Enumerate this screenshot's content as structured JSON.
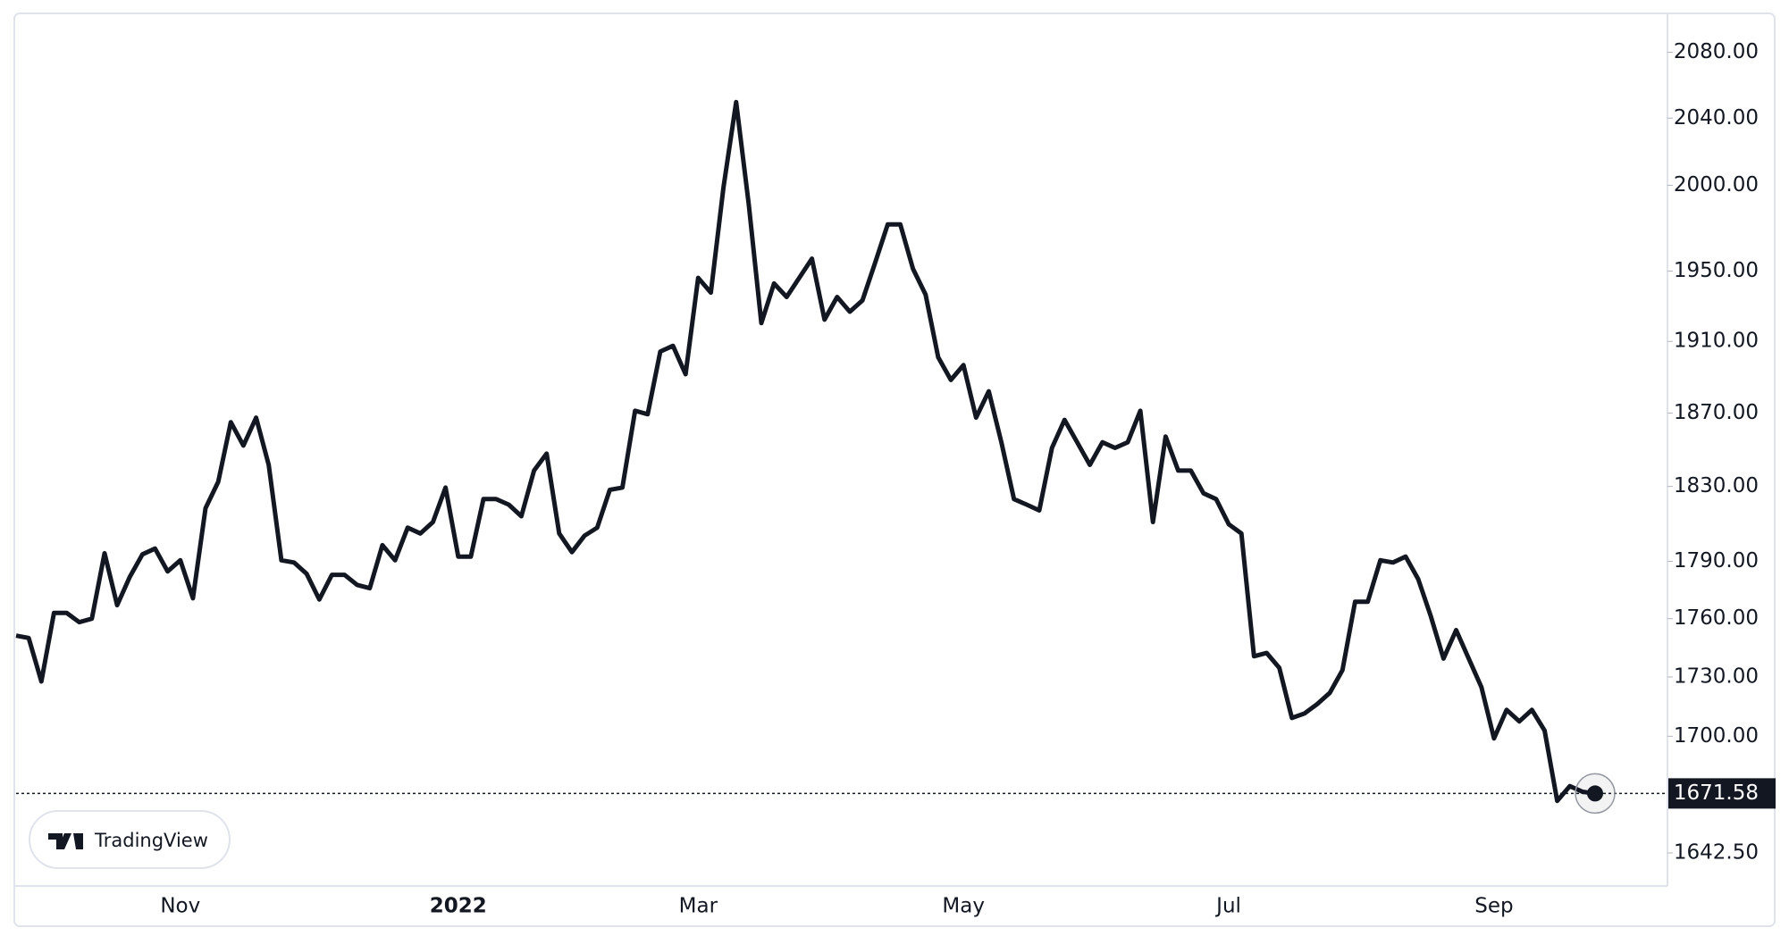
{
  "chart_data": {
    "type": "line",
    "categories": [
      null,
      null,
      null,
      null,
      null,
      null,
      null,
      null,
      null,
      null,
      null,
      null,
      null,
      "Nov",
      null,
      null,
      null,
      null,
      null,
      null,
      null,
      null,
      null,
      null,
      null,
      null,
      null,
      null,
      null,
      null,
      null,
      null,
      null,
      null,
      null,
      "2022",
      null,
      null,
      null,
      null,
      null,
      null,
      null,
      null,
      null,
      null,
      null,
      null,
      null,
      null,
      null,
      null,
      null,
      null,
      "Mar",
      null,
      null,
      null,
      null,
      null,
      null,
      null,
      null,
      null,
      null,
      null,
      null,
      null,
      null,
      null,
      null,
      null,
      null,
      null,
      null,
      "May",
      null,
      null,
      null,
      null,
      null,
      null,
      null,
      null,
      null,
      null,
      null,
      null,
      null,
      null,
      null,
      null,
      null,
      null,
      null,
      null,
      "Jul",
      null,
      null,
      null,
      null,
      null,
      null,
      null,
      null,
      null,
      null,
      null,
      null,
      null,
      null,
      null,
      null,
      null,
      null,
      null,
      null,
      "Sep",
      null,
      null,
      null,
      null,
      null,
      null,
      null,
      null
    ],
    "values": [
      1751.2,
      1750,
      1727.7,
      1763,
      1763,
      1758.2,
      1760,
      1794.3,
      1767,
      1781.8,
      1793.7,
      1796.8,
      1784.7,
      1790.6,
      1770.6,
      1818.3,
      1832.5,
      1865,
      1852.2,
      1867.5,
      1841.7,
      1790.6,
      1789.4,
      1783.5,
      1770,
      1782.9,
      1782.9,
      1777.6,
      1775.9,
      1798.6,
      1790.6,
      1807.9,
      1804.8,
      1810.9,
      1829.4,
      1792.5,
      1792.5,
      1823.2,
      1823.2,
      1820.2,
      1814,
      1838.6,
      1847.8,
      1804.8,
      1794.9,
      1803.6,
      1807.9,
      1828.2,
      1829.4,
      1871.3,
      1869.4,
      1904.3,
      1907.5,
      1891.6,
      1946.1,
      1937.7,
      1998.7,
      2049.7,
      1988.8,
      1920.3,
      1942.9,
      1935.2,
      1946.1,
      1957.2,
      1922.3,
      1935.2,
      1926.8,
      1933.2,
      1954.6,
      1977,
      1977,
      1951.3,
      1936.5,
      1901.1,
      1888.4,
      1896.7,
      1867.5,
      1882.1,
      1854,
      1823.2,
      1820.2,
      1817.1,
      1850.9,
      1866.3,
      1854,
      1841.7,
      1854,
      1850.9,
      1854,
      1871.3,
      1810.9,
      1857.1,
      1838.6,
      1838.6,
      1826.3,
      1823.2,
      1809.7,
      1804.8,
      1740.6,
      1742.3,
      1734.7,
      1709.2,
      1711.5,
      1716.2,
      1721.9,
      1733.5,
      1768.8,
      1768.8,
      1790.6,
      1789.4,
      1792.5,
      1780.6,
      1761.2,
      1739.4,
      1754.1,
      1739.4,
      1724.8,
      1698.9,
      1713.3,
      1707.5,
      1713.3,
      1702.9,
      1667.9,
      1675.2,
      1672.4,
      1671.58
    ],
    "color": "#131722",
    "log_scale": true,
    "ylim": [
      1630,
      2104
    ],
    "yticks": [
      {
        "value": 1642.5,
        "label": "1642.50"
      },
      {
        "value": 1700,
        "label": "1700.00"
      },
      {
        "value": 1730,
        "label": "1730.00"
      },
      {
        "value": 1760,
        "label": "1760.00"
      },
      {
        "value": 1790,
        "label": "1790.00"
      },
      {
        "value": 1830,
        "label": "1830.00"
      },
      {
        "value": 1870,
        "label": "1870.00"
      },
      {
        "value": 1910,
        "label": "1910.00"
      },
      {
        "value": 1950,
        "label": "1950.00"
      },
      {
        "value": 2000,
        "label": "2000.00"
      },
      {
        "value": 2040,
        "label": "2040.00"
      },
      {
        "value": 2080,
        "label": "2080.00"
      }
    ],
    "watermark": "TradingView"
  }
}
